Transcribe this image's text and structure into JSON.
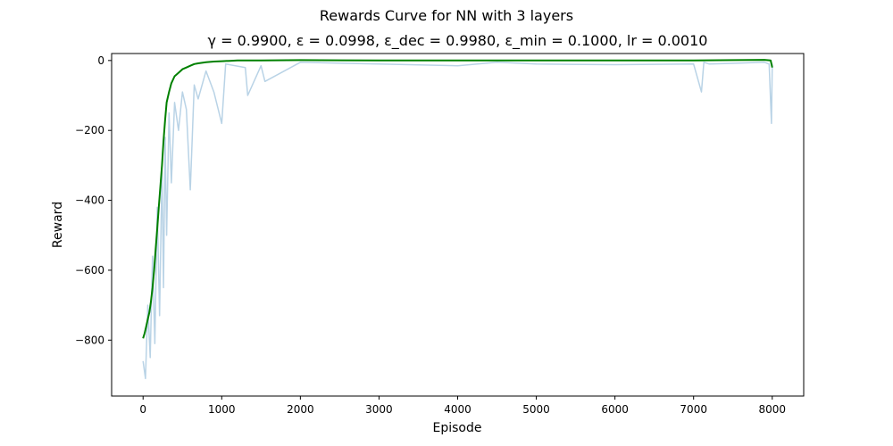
{
  "figure": {
    "suptitle": "Rewards Curve for NN with 3 layers",
    "subtitle": "γ = 0.9900, ε = 0.0998, ε_dec = 0.9980, ε_min = 0.1000, lr = 0.0010"
  },
  "chart_data": {
    "type": "line",
    "title": "Rewards Curve for NN with 3 layers",
    "subtitle": "γ = 0.9900, ε = 0.0998, ε_dec = 0.9980, ε_min = 0.1000, lr = 0.0010",
    "xlabel": "Episode",
    "ylabel": "Reward",
    "xlim": [
      -400,
      8400
    ],
    "ylim": [
      -960,
      20
    ],
    "x_ticks": [
      0,
      1000,
      2000,
      3000,
      4000,
      5000,
      6000,
      7000,
      8000
    ],
    "y_ticks": [
      0,
      -200,
      -400,
      -600,
      -800
    ],
    "grid": false,
    "series": [
      {
        "color": "#b9d3e6",
        "x": [
          0,
          30,
          60,
          90,
          120,
          150,
          180,
          210,
          240,
          260,
          280,
          300,
          330,
          360,
          400,
          450,
          500,
          550,
          600,
          650,
          700,
          800,
          900,
          1000,
          1050,
          1300,
          1330,
          1500,
          1550,
          2000,
          3000,
          4000,
          4500,
          5000,
          6000,
          7000,
          7100,
          7130,
          7200,
          7500,
          7900,
          7960,
          7990,
          8000
        ],
        "values": [
          -860,
          -910,
          -700,
          -850,
          -560,
          -810,
          -420,
          -730,
          -310,
          -650,
          -220,
          -500,
          -150,
          -350,
          -120,
          -200,
          -90,
          -140,
          -370,
          -70,
          -110,
          -30,
          -90,
          -180,
          -10,
          -20,
          -100,
          -15,
          -60,
          -5,
          -10,
          -15,
          -5,
          -10,
          -12,
          -10,
          -90,
          -5,
          -10,
          -8,
          -5,
          -10,
          -180,
          -10
        ]
      },
      {
        "color": "#008000",
        "x": [
          0,
          20,
          40,
          60,
          80,
          100,
          120,
          140,
          160,
          180,
          200,
          220,
          240,
          260,
          280,
          300,
          330,
          360,
          400,
          450,
          500,
          550,
          600,
          650,
          700,
          800,
          900,
          1000,
          1100,
          1200,
          1500,
          2000,
          3000,
          4000,
          5000,
          6000,
          7000,
          7500,
          7900,
          7980,
          8000
        ],
        "values": [
          -795,
          -780,
          -760,
          -740,
          -720,
          -690,
          -650,
          -600,
          -540,
          -480,
          -420,
          -360,
          -300,
          -230,
          -170,
          -120,
          -90,
          -65,
          -45,
          -35,
          -25,
          -20,
          -15,
          -10,
          -8,
          -5,
          -3,
          -2,
          -1,
          0,
          0,
          1,
          0,
          0,
          0,
          0,
          0,
          1,
          2,
          0,
          -20
        ]
      }
    ]
  }
}
